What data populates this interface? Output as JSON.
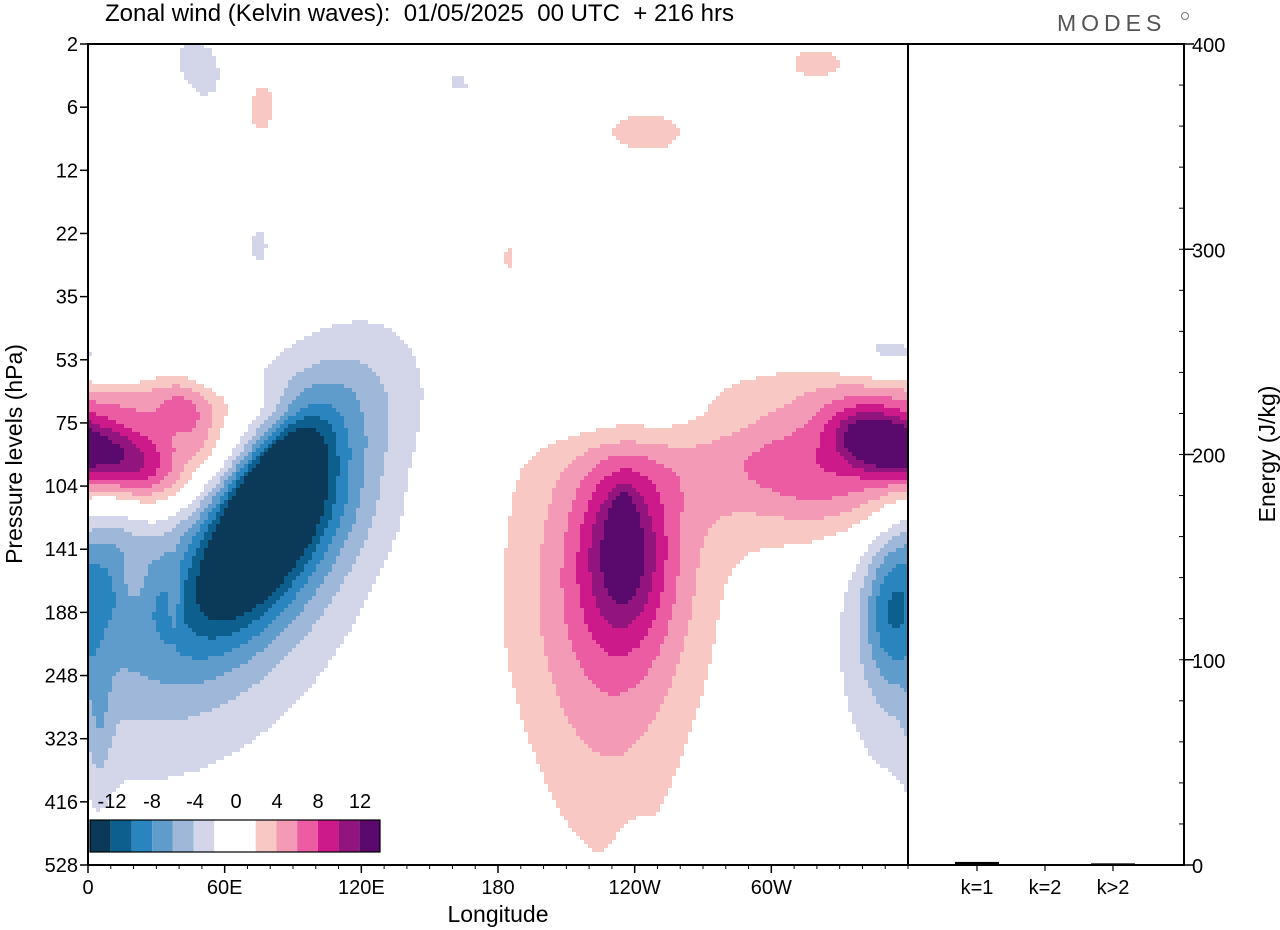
{
  "title": "Zonal wind (Kelvin waves):  01/05/2025  00 UTC  + 216 hrs",
  "brand": "MODES",
  "colors": {
    "neg": [
      "#0a3a57",
      "#0d5f8e",
      "#2a85bf",
      "#5f9ccb",
      "#9fb8da",
      "#d2d6e8"
    ],
    "zero": "#ffffff",
    "pos": [
      "#f8c8c4",
      "#f39ab6",
      "#ec5ca3",
      "#cc1a8a",
      "#92157e",
      "#5a0a6c"
    ]
  },
  "chart_data": [
    {
      "type": "heatmap",
      "xlabel": "Longitude",
      "ylabel": "Pressure levels (hPa)",
      "x_tick_labels": [
        "0",
        "60E",
        "120E",
        "180",
        "120W",
        "60W"
      ],
      "x_tick_lons": [
        0,
        60,
        120,
        180,
        240,
        300
      ],
      "xlim": [
        0,
        360
      ],
      "y_tick_labels": [
        "2",
        "6",
        "12",
        "22",
        "35",
        "53",
        "75",
        "104",
        "141",
        "188",
        "248",
        "323",
        "416",
        "528"
      ],
      "colorbar": {
        "tick_labels": [
          "-12",
          "-8",
          "-4",
          "0",
          "4",
          "8",
          "12"
        ],
        "levels": [
          -14,
          -12,
          -10,
          -8,
          -6,
          -4,
          -2,
          2,
          4,
          6,
          8,
          10,
          12,
          14
        ]
      },
      "features": [
        {
          "lon": 14,
          "level": 6.6,
          "value": 9,
          "sx": 18,
          "sy": 0.45,
          "tilt": -0.55
        },
        {
          "lon": 20,
          "level": 6.1,
          "value": 5,
          "sx": 48,
          "sy": 0.55,
          "tilt": -0.55
        },
        {
          "lon": 25,
          "level": 5.6,
          "value": 3,
          "sx": 40,
          "sy": 0.3,
          "tilt": -0.55
        },
        {
          "lon": 80,
          "level": 7.3,
          "value": -13,
          "sx": 10,
          "sy": 0.8,
          "tilt": 0.9
        },
        {
          "lon": 80,
          "level": 7.5,
          "value": -9,
          "sx": 20,
          "sy": 1.3,
          "tilt": 0.8
        },
        {
          "lon": 75,
          "level": 7.8,
          "value": -6,
          "sx": 30,
          "sy": 1.6,
          "tilt": 0.8
        },
        {
          "lon": 78,
          "level": 8.5,
          "value": -3,
          "sx": 40,
          "sy": 2.6,
          "tilt": 0.6
        },
        {
          "lon": 8,
          "level": 8.0,
          "value": -4,
          "sx": 12,
          "sy": 0.9,
          "tilt": 0
        },
        {
          "lon": 15,
          "level": 8.5,
          "value": -2.5,
          "sx": 22,
          "sy": 1.6,
          "tilt": 0
        },
        {
          "lon": 235,
          "level": 7.8,
          "value": 12,
          "sx": 3,
          "sy": 0.35,
          "tilt": 0
        },
        {
          "lon": 235,
          "level": 8.0,
          "value": 6,
          "sx": 12,
          "sy": 0.9,
          "tilt": 0
        },
        {
          "lon": 238,
          "level": 8.3,
          "value": 4,
          "sx": 24,
          "sy": 1.4,
          "tilt": 0
        },
        {
          "lon": 230,
          "level": 10.5,
          "value": 2.8,
          "sx": 25,
          "sy": 2.4,
          "tilt": 0
        },
        {
          "lon": 218,
          "level": 8.6,
          "value": 2.5,
          "sx": 35,
          "sy": 2.0,
          "tilt": 0
        },
        {
          "lon": 345,
          "level": 6.3,
          "value": 8,
          "sx": 12,
          "sy": 0.35,
          "tilt": -0.3
        },
        {
          "lon": 328,
          "level": 6.8,
          "value": 5,
          "sx": 36,
          "sy": 0.6,
          "tilt": -0.4
        },
        {
          "lon": 315,
          "level": 7.1,
          "value": 3,
          "sx": 60,
          "sy": 0.9,
          "tilt": -0.4
        },
        {
          "lon": 352,
          "level": 9.0,
          "value": -5,
          "sx": 8,
          "sy": 0.8,
          "tilt": 0
        },
        {
          "lon": 348,
          "level": 9.0,
          "value": -2.5,
          "sx": 18,
          "sy": 1.8,
          "tilt": 0
        },
        {
          "lon": 355,
          "level": 5.0,
          "value": -2.5,
          "sx": 20,
          "sy": 0.4,
          "tilt": -0.5
        },
        {
          "lon": 240,
          "level": 6.0,
          "value": -2.5,
          "sx": 30,
          "sy": 0.35,
          "tilt": 0
        },
        {
          "lon": 75,
          "level": 1.0,
          "value": 2.5,
          "sx": 10,
          "sy": 0.6,
          "tilt": 0
        },
        {
          "lon": 50,
          "level": 0.4,
          "value": -3,
          "sx": 10,
          "sy": 0.5,
          "tilt": -0.4
        },
        {
          "lon": 170,
          "level": 0.5,
          "value": -2.5,
          "sx": 20,
          "sy": 0.5,
          "tilt": 0
        },
        {
          "lon": 185,
          "level": 0.3,
          "value": 2.5,
          "sx": 12,
          "sy": 0.3,
          "tilt": 0
        },
        {
          "lon": 245,
          "level": 1.4,
          "value": 2.5,
          "sx": 22,
          "sy": 0.4,
          "tilt": 0
        },
        {
          "lon": 320,
          "level": 0.3,
          "value": 2.5,
          "sx": 15,
          "sy": 0.3,
          "tilt": 0
        },
        {
          "lon": 45,
          "level": 5.9,
          "value": 2.5,
          "sx": 8,
          "sy": 0.6,
          "tilt": -0.8
        },
        {
          "lon": 20,
          "level": 8.5,
          "value": 2.5,
          "sx": 4,
          "sy": 0.3,
          "tilt": 0
        },
        {
          "lon": 38,
          "level": 8.7,
          "value": 2.5,
          "sx": 2,
          "sy": 0.4,
          "tilt": 0
        },
        {
          "lon": 155,
          "level": 6.0,
          "value": 2.5,
          "sx": 3,
          "sy": 0.3,
          "tilt": 0
        },
        {
          "lon": 145,
          "level": 3.5,
          "value": 2.5,
          "sx": 2,
          "sy": 0.3,
          "tilt": 0
        },
        {
          "lon": 185,
          "level": 3.4,
          "value": 2.5,
          "sx": 3,
          "sy": 0.3,
          "tilt": 0
        },
        {
          "lon": 75,
          "level": 3.2,
          "value": -2.5,
          "sx": 4,
          "sy": 0.3,
          "tilt": 0
        },
        {
          "lon": 240,
          "level": 13.0,
          "value": -2.5,
          "sx": 5,
          "sy": 0.4,
          "tilt": 0
        },
        {
          "lon": 5,
          "level": 10.8,
          "value": -2.5,
          "sx": 4,
          "sy": 0.8,
          "tilt": 0
        }
      ]
    },
    {
      "type": "bar",
      "categories": [
        "k=1",
        "k=2",
        "k>2"
      ],
      "values": [
        1.5,
        0.3,
        0.8
      ],
      "ylabel": "Energy (J/kg)",
      "ylim": [
        0,
        400
      ],
      "y_tick_labels": [
        "0",
        "100",
        "200",
        "300",
        "400"
      ],
      "y_tick_values": [
        0,
        100,
        200,
        300,
        400
      ]
    }
  ]
}
